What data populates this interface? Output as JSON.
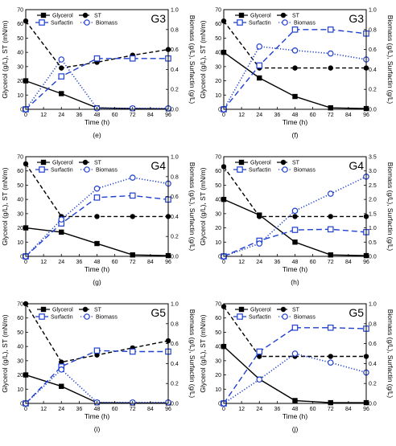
{
  "figure": {
    "background": "#ffffff"
  },
  "styles": {
    "glycerol": {
      "color": "#000000",
      "marker": "filled-square",
      "dash": "solid"
    },
    "st": {
      "color": "#000000",
      "marker": "filled-circle",
      "dash": "dash"
    },
    "surfactin": {
      "color": "#1f3fcf",
      "marker": "open-square",
      "dash": "longdash"
    },
    "biomass": {
      "color": "#1f3fcf",
      "marker": "open-circle",
      "dash": "dot"
    }
  },
  "chart_data": [
    {
      "type": "line",
      "panel_label": "(e)",
      "group_label": "G3",
      "xlabel": "Time (h)",
      "ylabel_left": "Glycerol (g/L), ST (mN/m)",
      "ylabel_right": "Biomass (g/L), Surfactin (g/L)",
      "xlim": [
        0,
        96
      ],
      "x_ticks": [
        0,
        12,
        24,
        36,
        48,
        60,
        72,
        84,
        96
      ],
      "ylim_left": [
        0,
        70
      ],
      "y_ticks_left": [
        0,
        10,
        20,
        30,
        40,
        50,
        60,
        70
      ],
      "ylim_right": [
        0,
        1.0
      ],
      "y_ticks_right": [
        "0.0",
        "0.2",
        "0.4",
        "0.6",
        "0.8",
        "1.0"
      ],
      "legend": [
        {
          "key": "glycerol",
          "label": "Glycerol"
        },
        {
          "key": "st",
          "label": "ST"
        },
        {
          "key": "surfactin",
          "label": "Surfactin"
        },
        {
          "key": "biomass",
          "label": "Biomass"
        }
      ],
      "series": [
        {
          "name": "Glycerol",
          "style": "glycerol",
          "axis": "left",
          "x": [
            0,
            24,
            48,
            72,
            96
          ],
          "y": [
            20,
            11,
            1,
            0.5,
            0.3
          ]
        },
        {
          "name": "ST",
          "style": "st",
          "axis": "left",
          "x": [
            0,
            24,
            48,
            72,
            96
          ],
          "y": [
            62,
            29,
            33,
            38,
            42
          ]
        },
        {
          "name": "Surfactin",
          "style": "surfactin",
          "axis": "right",
          "x": [
            0,
            24,
            48,
            72,
            96
          ],
          "y": [
            0.0,
            0.33,
            0.51,
            0.51,
            0.51
          ]
        },
        {
          "name": "Biomass",
          "style": "biomass",
          "axis": "right",
          "x": [
            0,
            24,
            48,
            72,
            96
          ],
          "y": [
            0.0,
            0.5,
            0.01,
            0.01,
            0.01
          ]
        }
      ]
    },
    {
      "type": "line",
      "panel_label": "(f)",
      "group_label": "G3",
      "xlabel": "Time (h)",
      "ylabel_left": "Glycerol (g/L), ST (mN/m)",
      "ylabel_right": "Biomass (g/L), Surfactin (g/L)",
      "xlim": [
        0,
        96
      ],
      "x_ticks": [
        0,
        12,
        24,
        36,
        48,
        60,
        72,
        84,
        96
      ],
      "ylim_left": [
        0,
        70
      ],
      "y_ticks_left": [
        0,
        10,
        20,
        30,
        40,
        50,
        60,
        70
      ],
      "ylim_right": [
        0,
        1.0
      ],
      "y_ticks_right": [
        "0.0",
        "0.2",
        "0.4",
        "0.6",
        "0.8",
        "1.0"
      ],
      "legend": [
        {
          "key": "glycerol",
          "label": "Glycerol"
        },
        {
          "key": "st",
          "label": "ST"
        },
        {
          "key": "surfactin",
          "label": "Surfactin"
        },
        {
          "key": "biomass",
          "label": "Biomass"
        }
      ],
      "series": [
        {
          "name": "Glycerol",
          "style": "glycerol",
          "axis": "left",
          "x": [
            0,
            24,
            48,
            72,
            96
          ],
          "y": [
            40,
            22,
            9,
            1,
            0.5
          ]
        },
        {
          "name": "ST",
          "style": "st",
          "axis": "left",
          "x": [
            0,
            24,
            48,
            72,
            96
          ],
          "y": [
            62,
            29,
            29,
            29,
            29
          ]
        },
        {
          "name": "Surfactin",
          "style": "surfactin",
          "axis": "right",
          "x": [
            0,
            24,
            48,
            72,
            96
          ],
          "y": [
            0.0,
            0.44,
            0.8,
            0.8,
            0.76
          ]
        },
        {
          "name": "Biomass",
          "style": "biomass",
          "axis": "right",
          "x": [
            0,
            24,
            48,
            72,
            96
          ],
          "y": [
            0.0,
            0.63,
            0.59,
            0.56,
            0.5
          ]
        }
      ]
    },
    {
      "type": "line",
      "panel_label": "(g)",
      "group_label": "G4",
      "xlabel": "Time (h)",
      "ylabel_left": "Glycerol (g/L), ST (mN/m)",
      "ylabel_right": "Biomass (g/L), Surfactin (g/L)",
      "xlim": [
        0,
        96
      ],
      "x_ticks": [
        0,
        12,
        24,
        36,
        48,
        60,
        72,
        84,
        96
      ],
      "ylim_left": [
        0,
        70
      ],
      "y_ticks_left": [
        0,
        10,
        20,
        30,
        40,
        50,
        60,
        70
      ],
      "ylim_right": [
        0,
        1.0
      ],
      "y_ticks_right": [
        "0.0",
        "0.2",
        "0.4",
        "0.6",
        "0.8",
        "1.0"
      ],
      "legend": [
        {
          "key": "glycerol",
          "label": "Glycerol"
        },
        {
          "key": "st",
          "label": "ST"
        },
        {
          "key": "surfactin",
          "label": "Surfactin"
        },
        {
          "key": "biomass",
          "label": "Biomass"
        }
      ],
      "series": [
        {
          "name": "Glycerol",
          "style": "glycerol",
          "axis": "left",
          "x": [
            0,
            24,
            48,
            72,
            96
          ],
          "y": [
            20,
            17,
            9,
            1,
            0.5
          ]
        },
        {
          "name": "ST",
          "style": "st",
          "axis": "left",
          "x": [
            0,
            24,
            48,
            72,
            96
          ],
          "y": [
            65,
            28,
            28,
            28,
            28
          ]
        },
        {
          "name": "Surfactin",
          "style": "surfactin",
          "axis": "right",
          "x": [
            0,
            24,
            48,
            72,
            96
          ],
          "y": [
            0.0,
            0.33,
            0.59,
            0.61,
            0.57
          ]
        },
        {
          "name": "Biomass",
          "style": "biomass",
          "axis": "right",
          "x": [
            0,
            24,
            48,
            72,
            96
          ],
          "y": [
            0.0,
            0.37,
            0.68,
            0.79,
            0.73
          ]
        }
      ]
    },
    {
      "type": "line",
      "panel_label": "(h)",
      "group_label": "G4",
      "xlabel": "Time (h)",
      "ylabel_left": "Glycerol (g/L), ST (mN/m)",
      "ylabel_right": "Biomass (g/L), Surfactin (g/L)",
      "xlim": [
        0,
        96
      ],
      "x_ticks": [
        0,
        12,
        24,
        36,
        48,
        60,
        72,
        84,
        96
      ],
      "ylim_left": [
        0,
        70
      ],
      "y_ticks_left": [
        0,
        10,
        20,
        30,
        40,
        50,
        60,
        70
      ],
      "ylim_right": [
        0,
        3.5
      ],
      "y_ticks_right": [
        "0.0",
        "0.5",
        "1.0",
        "1.5",
        "2.0",
        "2.5",
        "3.0",
        "3.5"
      ],
      "legend": [
        {
          "key": "glycerol",
          "label": "Glycerol"
        },
        {
          "key": "st",
          "label": "ST"
        },
        {
          "key": "surfactin",
          "label": "Surfactin"
        },
        {
          "key": "biomass",
          "label": "Biomass"
        }
      ],
      "series": [
        {
          "name": "Glycerol",
          "style": "glycerol",
          "axis": "left",
          "x": [
            0,
            24,
            48,
            72,
            96
          ],
          "y": [
            40,
            29,
            10,
            1,
            0.5
          ]
        },
        {
          "name": "ST",
          "style": "st",
          "axis": "left",
          "x": [
            0,
            24,
            48,
            72,
            96
          ],
          "y": [
            63,
            28,
            28,
            28,
            28
          ]
        },
        {
          "name": "Surfactin",
          "style": "surfactin",
          "axis": "right",
          "x": [
            0,
            24,
            48,
            72,
            96
          ],
          "y": [
            0.0,
            0.55,
            0.93,
            0.95,
            0.85
          ]
        },
        {
          "name": "Biomass",
          "style": "biomass",
          "axis": "right",
          "x": [
            0,
            24,
            48,
            72,
            96
          ],
          "y": [
            0.0,
            0.45,
            1.6,
            2.2,
            2.8
          ]
        }
      ]
    },
    {
      "type": "line",
      "panel_label": "(i)",
      "group_label": "G5",
      "xlabel": "Time (h)",
      "ylabel_left": "Glycerol (g/L), ST (mN/m)",
      "ylabel_right": "Biomass (g/L), Surfactin (g/L)",
      "xlim": [
        0,
        96
      ],
      "x_ticks": [
        0,
        12,
        24,
        36,
        48,
        60,
        72,
        84,
        96
      ],
      "ylim_left": [
        0,
        70
      ],
      "y_ticks_left": [
        0,
        10,
        20,
        30,
        40,
        50,
        60,
        70
      ],
      "ylim_right": [
        0,
        1.0
      ],
      "y_ticks_right": [
        "0.0",
        "0.2",
        "0.4",
        "0.6",
        "0.8",
        "1.0"
      ],
      "legend": [
        {
          "key": "glycerol",
          "label": "Glycerol"
        },
        {
          "key": "st",
          "label": "ST"
        },
        {
          "key": "surfactin",
          "label": "Surfactin"
        },
        {
          "key": "biomass",
          "label": "Biomass"
        }
      ],
      "series": [
        {
          "name": "Glycerol",
          "style": "glycerol",
          "axis": "left",
          "x": [
            0,
            24,
            48,
            72,
            96
          ],
          "y": [
            20,
            12,
            0.5,
            0.3,
            0.3
          ]
        },
        {
          "name": "ST",
          "style": "st",
          "axis": "left",
          "x": [
            0,
            24,
            48,
            72,
            96
          ],
          "y": [
            70,
            29,
            34,
            39,
            44
          ]
        },
        {
          "name": "Surfactin",
          "style": "surfactin",
          "axis": "right",
          "x": [
            0,
            24,
            48,
            72,
            96
          ],
          "y": [
            0.0,
            0.37,
            0.53,
            0.52,
            0.52
          ]
        },
        {
          "name": "Biomass",
          "style": "biomass",
          "axis": "right",
          "x": [
            0,
            24,
            48,
            72,
            96
          ],
          "y": [
            0.0,
            0.34,
            0.01,
            0.01,
            0.01
          ]
        }
      ]
    },
    {
      "type": "line",
      "panel_label": "(j)",
      "group_label": "G5",
      "xlabel": "Time (h)",
      "ylabel_left": "Glycerol (g/L), ST (mN/m)",
      "ylabel_right": "Biomass (g/L), Surfactin (g/L)",
      "xlim": [
        0,
        96
      ],
      "x_ticks": [
        0,
        12,
        24,
        36,
        48,
        60,
        72,
        84,
        96
      ],
      "ylim_left": [
        0,
        70
      ],
      "y_ticks_left": [
        0,
        10,
        20,
        30,
        40,
        50,
        60,
        70
      ],
      "ylim_right": [
        0,
        1.0
      ],
      "y_ticks_right": [
        "0.0",
        "0.2",
        "0.4",
        "0.6",
        "0.8",
        "1.0"
      ],
      "legend": [
        {
          "key": "glycerol",
          "label": "Glycerol"
        },
        {
          "key": "st",
          "label": "ST"
        },
        {
          "key": "surfactin",
          "label": "Surfactin"
        },
        {
          "key": "biomass",
          "label": "Biomass"
        }
      ],
      "series": [
        {
          "name": "Glycerol",
          "style": "glycerol",
          "axis": "left",
          "x": [
            0,
            24,
            48,
            72,
            96
          ],
          "y": [
            40,
            17,
            2,
            0.5,
            0.5
          ]
        },
        {
          "name": "ST",
          "style": "st",
          "axis": "left",
          "x": [
            0,
            24,
            48,
            72,
            96
          ],
          "y": [
            68,
            33,
            33,
            33,
            33
          ]
        },
        {
          "name": "Surfactin",
          "style": "surfactin",
          "axis": "right",
          "x": [
            0,
            24,
            48,
            72,
            96
          ],
          "y": [
            0.0,
            0.52,
            0.76,
            0.76,
            0.75
          ]
        },
        {
          "name": "Biomass",
          "style": "biomass",
          "axis": "right",
          "x": [
            0,
            24,
            48,
            72,
            96
          ],
          "y": [
            0.0,
            0.24,
            0.5,
            0.41,
            0.31
          ]
        }
      ]
    }
  ]
}
